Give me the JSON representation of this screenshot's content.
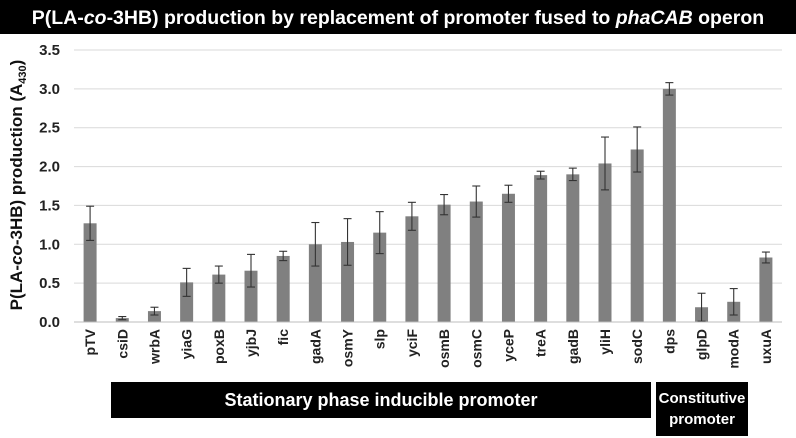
{
  "chart_data": {
    "type": "bar",
    "title": {
      "prefix": "P(LA-",
      "italic1": "co",
      "middle": "-3HB) production by replacement of promoter fused to ",
      "italic2": "phaCAB",
      "suffix": " operon"
    },
    "ylabel": {
      "main": "P(LA-",
      "italic": "co",
      "rest": "-3HB) production (A",
      "sub": "430",
      "close": ")"
    },
    "xlabel": "",
    "ylim": [
      0,
      3.5
    ],
    "yticks": [
      "0.0",
      "0.5",
      "1.0",
      "1.5",
      "2.0",
      "2.5",
      "3.0",
      "3.5"
    ],
    "grid": true,
    "bar_color": "#808080",
    "categories": [
      "pTV",
      "csiD",
      "wrbA",
      "yiaG",
      "poxB",
      "yjbJ",
      "fic",
      "gadA",
      "osmY",
      "slp",
      "yciF",
      "osmB",
      "osmC",
      "yceP",
      "treA",
      "gadB",
      "yliH",
      "sodC",
      "dps",
      "glpD",
      "modA",
      "uxuA"
    ],
    "values": [
      1.27,
      0.05,
      0.14,
      0.51,
      0.61,
      0.66,
      0.85,
      1.0,
      1.03,
      1.15,
      1.36,
      1.51,
      1.55,
      1.65,
      1.89,
      1.9,
      2.04,
      2.22,
      3.0,
      0.19,
      0.26,
      0.83
    ],
    "errors": [
      0.22,
      0.02,
      0.05,
      0.18,
      0.11,
      0.21,
      0.06,
      0.28,
      0.3,
      0.27,
      0.18,
      0.13,
      0.2,
      0.11,
      0.05,
      0.08,
      0.34,
      0.29,
      0.08,
      0.18,
      0.17,
      0.07
    ],
    "groups": [
      {
        "label": "Stationary phase inducible promoter",
        "from": "csiD",
        "to": "dps"
      },
      {
        "label_line1": "Constitutive",
        "label_line2": "promoter",
        "from": "glpD",
        "to": "uxuA"
      }
    ]
  }
}
